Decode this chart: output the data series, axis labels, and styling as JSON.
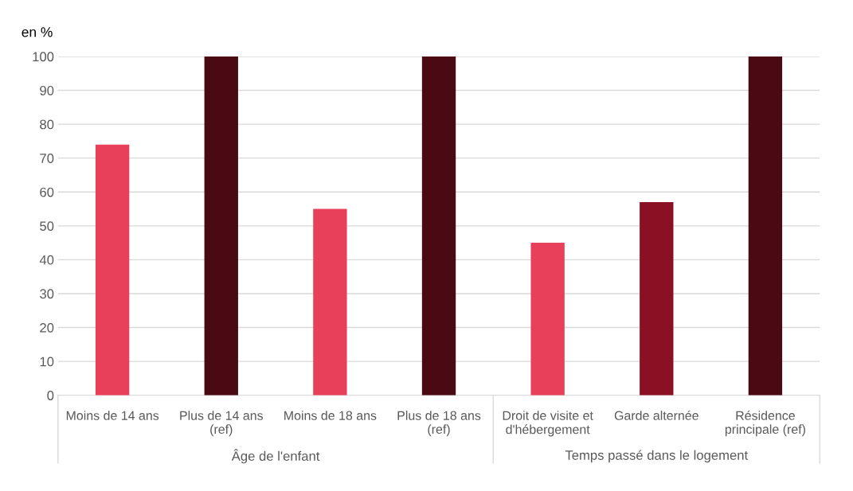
{
  "chart_data": {
    "type": "bar",
    "ylabel": "en %",
    "categories": [
      "Moins de 14 ans",
      "Plus de 14 ans\n(ref)",
      "Moins de 18 ans",
      "Plus de 18 ans\n(ref)",
      "Droit de visite et\nd'hébergement",
      "Garde alternée",
      "Résidence\nprincipale (ref)"
    ],
    "values": [
      74,
      100,
      55,
      100,
      45,
      57,
      100
    ],
    "colors": [
      "#e8405a",
      "#4a0a14",
      "#e8405a",
      "#4a0a14",
      "#e8405a",
      "#8a1024",
      "#4a0a14"
    ],
    "ylim": [
      0,
      100
    ],
    "yticks": [
      0,
      10,
      20,
      30,
      40,
      50,
      60,
      70,
      80,
      90,
      100
    ],
    "grid": "y",
    "annotations": [
      "Âge de l'enfant",
      "Temps passé dans le logement"
    ]
  }
}
